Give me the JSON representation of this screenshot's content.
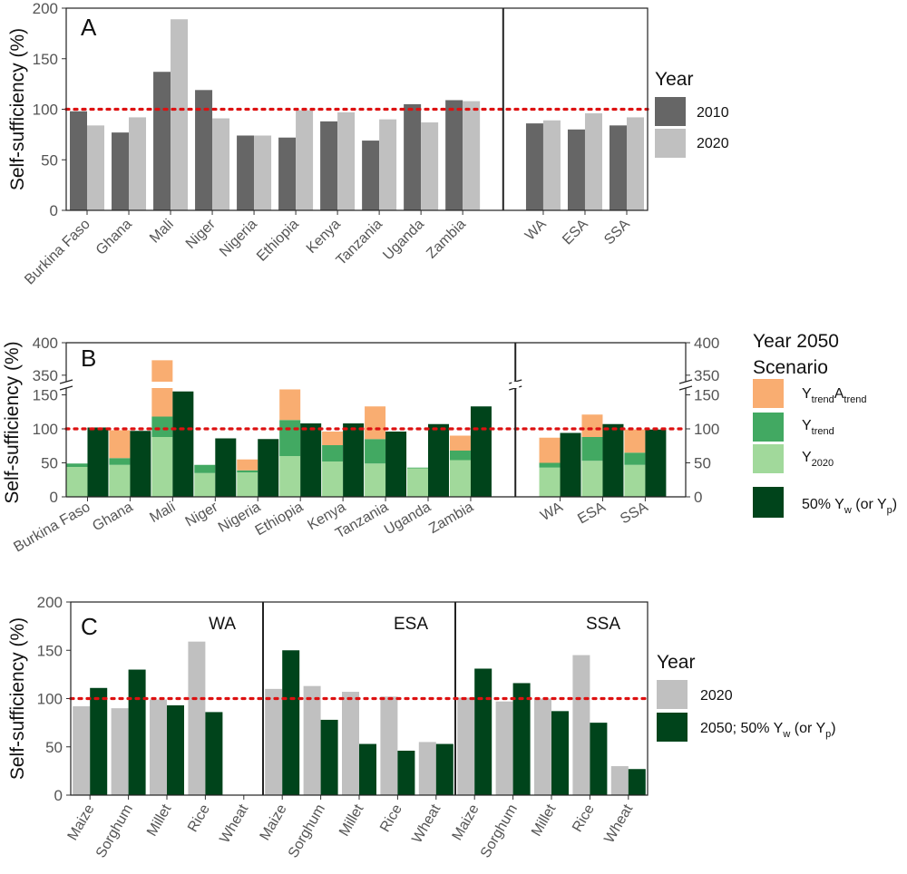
{
  "colors": {
    "y2010": "#666666",
    "y2020": "#c0c0c0",
    "atrend": "#f9ad71",
    "ytrend": "#42a962",
    "y2020s": "#a1d99b",
    "yw50": "#00441b",
    "refline": "#dd1111"
  },
  "chart_data": [
    {
      "panel": "A",
      "type": "bar",
      "ylabel": "Self-sufficiency (%)",
      "ylim": [
        0,
        200
      ],
      "yticks": [
        0,
        50,
        100,
        150,
        200
      ],
      "reference_line": 100,
      "categories": [
        "Burkina Faso",
        "Ghana",
        "Mali",
        "Niger",
        "Nigeria",
        "Ethiopia",
        "Kenya",
        "Tanzania",
        "Uganda",
        "Zambia",
        "WA",
        "ESA",
        "SSA"
      ],
      "separator_after_index": 9,
      "series": [
        {
          "name": "2010",
          "values": [
            98,
            77,
            137,
            119,
            74,
            72,
            88,
            69,
            105,
            109,
            86,
            80,
            84
          ]
        },
        {
          "name": "2020",
          "values": [
            84,
            92,
            189,
            91,
            74,
            99,
            97,
            90,
            87,
            108,
            89,
            96,
            92
          ]
        }
      ],
      "legend": {
        "title": "Year",
        "entries": [
          "2010",
          "2020"
        ]
      }
    },
    {
      "panel": "B",
      "type": "bar",
      "stacked": true,
      "ylabel": "Self-sufficiency (%)",
      "axis_break": [
        160,
        340
      ],
      "ylim": [
        0,
        400
      ],
      "yticks_lower": [
        0,
        50,
        100,
        150
      ],
      "yticks_upper": [
        350,
        400
      ],
      "reference_line": 100,
      "categories": [
        "Burkina Faso",
        "Ghana",
        "Mali",
        "Niger",
        "Nigeria",
        "Ethiopia",
        "Kenya",
        "Tanzania",
        "Uganda",
        "Zambia",
        "WA",
        "ESA",
        "SSA"
      ],
      "separator_after_index": 9,
      "series": [
        {
          "name": "Y2020",
          "values": [
            44,
            47,
            88,
            35,
            36,
            60,
            52,
            49,
            42,
            54,
            43,
            53,
            47
          ]
        },
        {
          "name": "Ytrend",
          "cumulative_values": [
            49,
            57,
            118,
            47,
            39,
            113,
            76,
            85,
            43,
            68,
            50,
            88,
            65
          ]
        },
        {
          "name": "YtrendAtrend",
          "cumulative_values": [
            49,
            98,
            373,
            47,
            55,
            158,
            96,
            133,
            43,
            90,
            87,
            121,
            99
          ]
        },
        {
          "name": "50% Yw (or Yp)",
          "values": [
            102,
            97,
            155,
            86,
            85,
            108,
            108,
            96,
            107,
            133,
            94,
            107,
            99
          ]
        }
      ],
      "legend": {
        "title_line1": "Year 2050",
        "title_line2": "Scenario",
        "entry_ytrend_atrend_base": "Y",
        "entry_ytrend_atrend_sub": "trend",
        "entry_ytrend_atrend_base2": "A",
        "entry_ytrend_atrend_sub2": "trend",
        "entry_ytrend_base": "Y",
        "entry_ytrend_sub": "trend",
        "entry_y2020_base": "Y",
        "entry_y2020_sub": "2020",
        "entry_yw_prefix": "50% Y",
        "entry_yw_sub": "w",
        "entry_yw_mid": " (or Y",
        "entry_yw_sub2": "p",
        "entry_yw_suffix": ")"
      }
    },
    {
      "panel": "C",
      "type": "bar",
      "ylabel": "Self-sufficiency (%)",
      "ylim": [
        0,
        200
      ],
      "yticks": [
        0,
        50,
        100,
        150,
        200
      ],
      "reference_line": 100,
      "facets": [
        {
          "label": "WA",
          "categories": [
            "Maize",
            "Sorghum",
            "Millet",
            "Rice",
            "Wheat"
          ],
          "y2020": [
            92,
            90,
            99,
            159,
            0
          ],
          "y2050": [
            111,
            130,
            93,
            86,
            0
          ]
        },
        {
          "label": "ESA",
          "categories": [
            "Maize",
            "Sorghum",
            "Millet",
            "Rice",
            "Wheat"
          ],
          "y2020": [
            110,
            113,
            107,
            102,
            55
          ],
          "y2050": [
            150,
            78,
            53,
            46,
            53
          ]
        },
        {
          "label": "SSA",
          "categories": [
            "Maize",
            "Sorghum",
            "Millet",
            "Rice",
            "Wheat"
          ],
          "y2020": [
            101,
            97,
            100,
            145,
            30
          ],
          "y2050": [
            131,
            116,
            87,
            75,
            27
          ]
        }
      ],
      "legend": {
        "title": "Year",
        "entry1": "2020",
        "entry2_prefix": "2050; 50% Y",
        "entry2_sub": "w",
        "entry2_mid": " (or Y",
        "entry2_sub2": "p",
        "entry2_suffix": ")"
      }
    }
  ]
}
